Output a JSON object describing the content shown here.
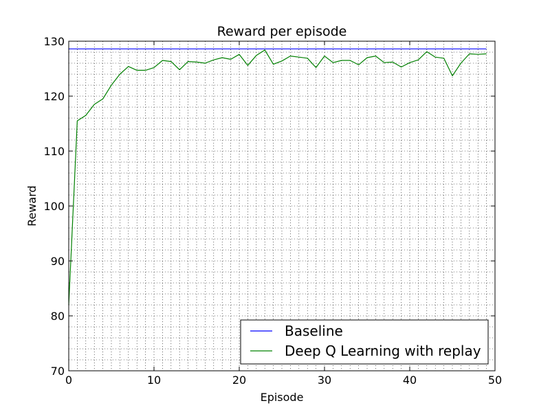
{
  "chart_data": {
    "type": "line",
    "title": "Reward per episode",
    "xlabel": "Episode",
    "ylabel": "Reward",
    "xlim": [
      0,
      50
    ],
    "ylim": [
      70,
      130
    ],
    "xticks": [
      0,
      10,
      20,
      30,
      40,
      50
    ],
    "yticks": [
      70,
      80,
      90,
      100,
      110,
      120,
      130
    ],
    "x_minor_step": 1,
    "y_minor_step": 2,
    "grid": true,
    "legend_position": "lower-right",
    "series": [
      {
        "name": "Baseline",
        "color": "#0000ff",
        "x": [
          0,
          49
        ],
        "values": [
          128.6,
          128.6
        ]
      },
      {
        "name": "Deep Q Learning with replay",
        "color": "#008000",
        "x": [
          0,
          1,
          2,
          3,
          4,
          5,
          6,
          7,
          8,
          9,
          10,
          11,
          12,
          13,
          14,
          15,
          16,
          17,
          18,
          19,
          20,
          21,
          22,
          23,
          24,
          25,
          26,
          27,
          28,
          29,
          30,
          31,
          32,
          33,
          34,
          35,
          36,
          37,
          38,
          39,
          40,
          41,
          42,
          43,
          44,
          45,
          46,
          47,
          48,
          49
        ],
        "values": [
          82.0,
          115.5,
          116.5,
          118.5,
          119.5,
          122.0,
          124.0,
          125.4,
          124.7,
          124.7,
          125.2,
          126.5,
          126.3,
          124.8,
          126.3,
          126.2,
          126.0,
          126.6,
          127.0,
          126.7,
          127.6,
          125.6,
          127.4,
          128.4,
          125.8,
          126.4,
          127.3,
          127.1,
          126.9,
          125.2,
          127.3,
          126.1,
          126.5,
          126.5,
          125.7,
          127.0,
          127.3,
          126.1,
          126.2,
          125.3,
          126.1,
          126.6,
          128.1,
          127.1,
          126.9,
          123.7,
          126.0,
          127.7,
          127.6,
          127.7
        ]
      }
    ]
  }
}
